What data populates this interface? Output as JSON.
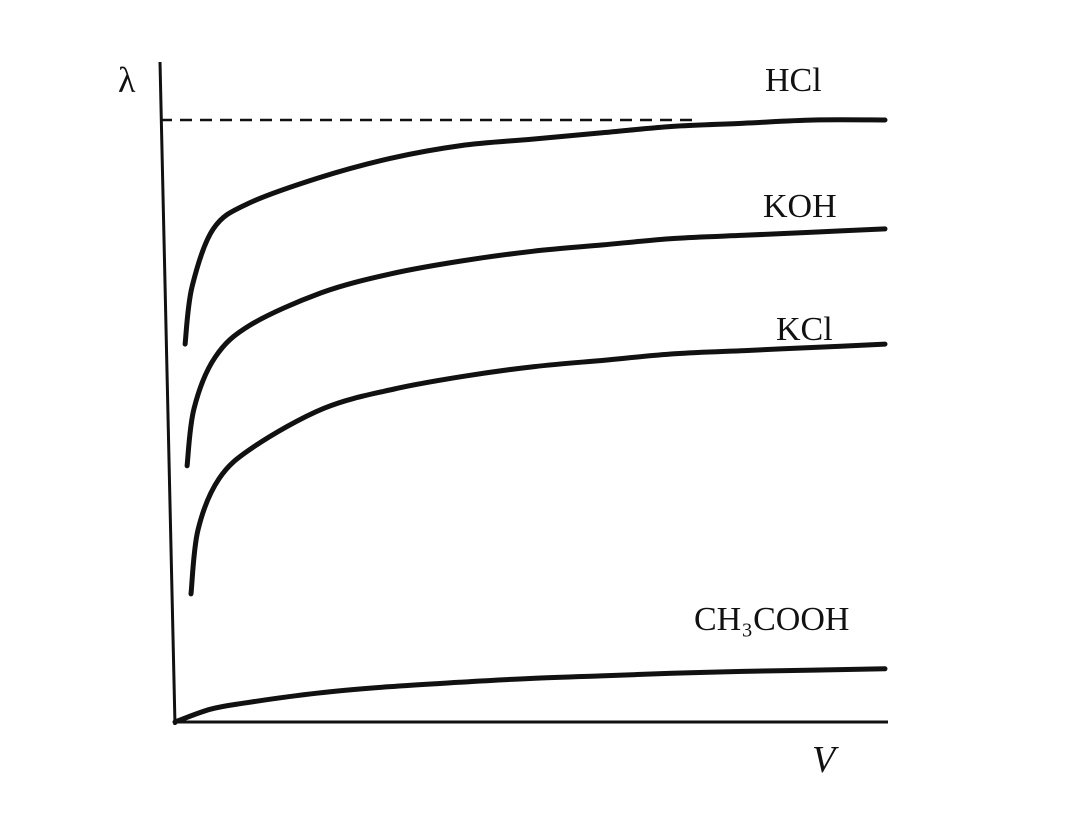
{
  "chart_data": {
    "type": "line",
    "xlabel": "V",
    "ylabel": "λ",
    "ylim": [
      0,
      1
    ],
    "grid": false,
    "series": [
      {
        "name": "HCl",
        "x": [
          0.01,
          0.02,
          0.05,
          0.1,
          0.2,
          0.3,
          0.4,
          0.5,
          0.6,
          0.7,
          0.8,
          0.9,
          1.0
        ],
        "values": [
          0.59,
          0.68,
          0.77,
          0.81,
          0.85,
          0.88,
          0.9,
          0.91,
          0.92,
          0.93,
          0.935,
          0.94,
          0.94
        ]
      },
      {
        "name": "KOH",
        "x": [
          0.01,
          0.02,
          0.05,
          0.1,
          0.2,
          0.3,
          0.4,
          0.5,
          0.6,
          0.7,
          0.8,
          0.9,
          1.0
        ],
        "values": [
          0.4,
          0.49,
          0.57,
          0.62,
          0.67,
          0.7,
          0.72,
          0.735,
          0.745,
          0.755,
          0.76,
          0.765,
          0.77
        ]
      },
      {
        "name": "KCl",
        "x": [
          0.01,
          0.02,
          0.05,
          0.1,
          0.2,
          0.3,
          0.4,
          0.5,
          0.6,
          0.7,
          0.8,
          0.9,
          1.0
        ],
        "values": [
          0.2,
          0.3,
          0.38,
          0.43,
          0.49,
          0.52,
          0.54,
          0.555,
          0.565,
          0.575,
          0.58,
          0.585,
          0.59
        ]
      },
      {
        "name": "CH₃COOH",
        "x": [
          0.0,
          0.05,
          0.1,
          0.2,
          0.3,
          0.4,
          0.5,
          0.6,
          0.7,
          0.8,
          0.9,
          1.0
        ],
        "values": [
          0.0,
          0.02,
          0.03,
          0.045,
          0.055,
          0.062,
          0.068,
          0.072,
          0.076,
          0.079,
          0.081,
          0.083
        ]
      }
    ],
    "annotations": [
      "limit line (dashed) at HCl plateau"
    ]
  }
}
